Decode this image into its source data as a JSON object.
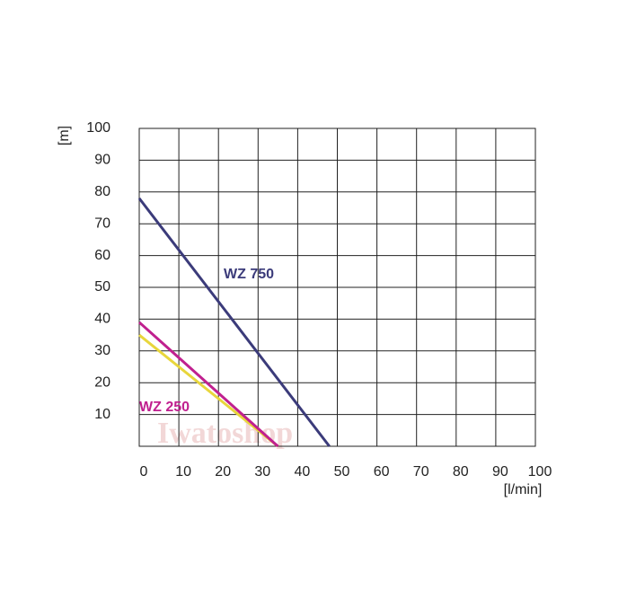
{
  "chart_data": {
    "type": "line",
    "x_label": "[l/min]",
    "y_label": "[m]",
    "watermark": "Iwatoshop",
    "series": [
      {
        "name": "WZ 750",
        "color": "#3b3b7a",
        "x": [
          0,
          48
        ],
        "values": [
          78,
          0
        ]
      },
      {
        "name": "WZ 250",
        "color": "#c0208f",
        "x": [
          0,
          35
        ],
        "values": [
          39,
          0
        ]
      },
      {
        "color": "#e8d63c",
        "x": [
          0,
          35
        ],
        "values": [
          35,
          0
        ]
      }
    ],
    "xlim": [
      0,
      100
    ],
    "ylim": [
      0,
      100
    ],
    "xticks": [
      0,
      10,
      20,
      30,
      40,
      50,
      60,
      70,
      80,
      90,
      100
    ],
    "yticks": [
      10,
      20,
      30,
      40,
      50,
      60,
      70,
      80,
      90,
      100
    ],
    "grid": true
  }
}
